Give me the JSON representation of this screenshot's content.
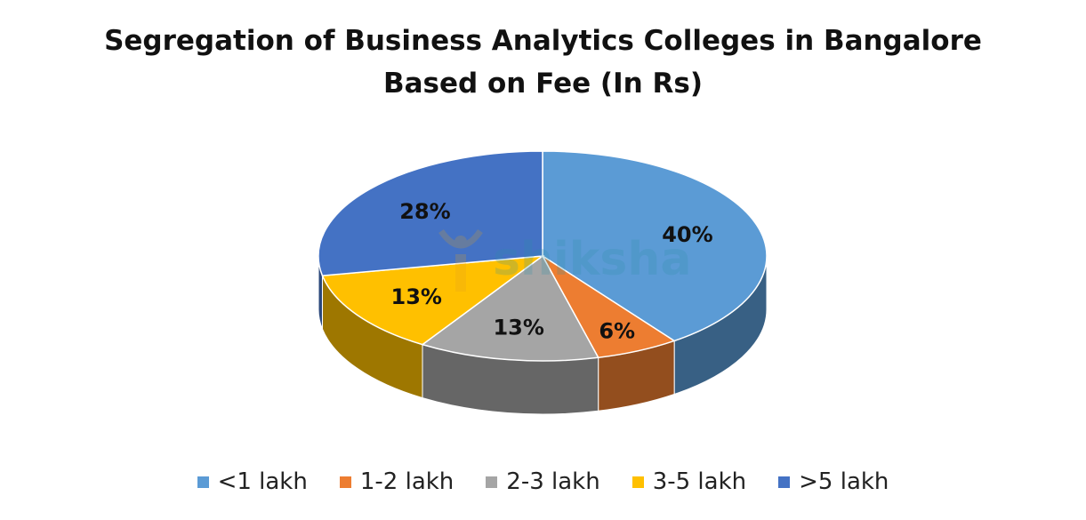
{
  "chart_data": {
    "type": "pie",
    "title_lines": [
      "Segregation of Business Analytics Colleges in Bangalore",
      "Based on Fee (In Rs)"
    ],
    "categories": [
      "<1 lakh",
      "1-2 lakh",
      "2-3 lakh",
      "3-5 lakh",
      ">5 lakh"
    ],
    "values": [
      40,
      6,
      13,
      13,
      28
    ],
    "labels": [
      "40%",
      "6%",
      "13%",
      "13%",
      "28%"
    ],
    "colors": [
      "#5b9bd5",
      "#ed7d31",
      "#a5a5a5",
      "#ffc000",
      "#4472c4"
    ],
    "legend_position": "bottom",
    "style": "3d"
  },
  "watermark": {
    "text": "shiksha"
  }
}
